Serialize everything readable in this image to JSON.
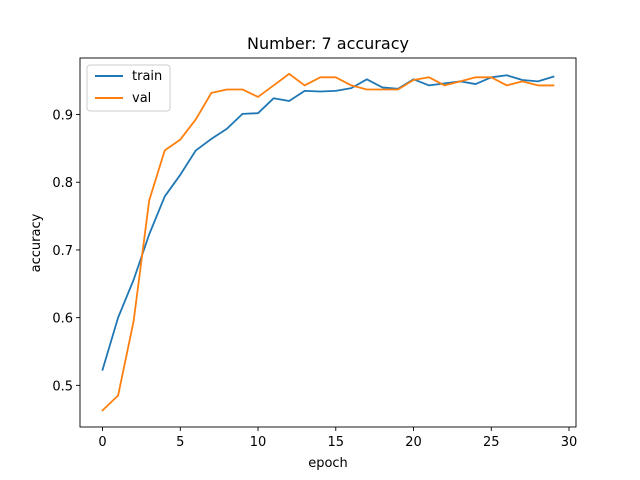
{
  "chart_data": {
    "type": "line",
    "title": "Number: 7 accuracy",
    "xlabel": "epoch",
    "ylabel": "accuracy",
    "xlim": [
      -1.45,
      30.45
    ],
    "ylim": [
      0.4385,
      0.9835
    ],
    "xticks": [
      0,
      5,
      10,
      15,
      20,
      25,
      30
    ],
    "yticks": [
      0.5,
      0.6,
      0.7,
      0.8,
      0.9
    ],
    "xtick_labels": [
      "0",
      "5",
      "10",
      "15",
      "20",
      "25",
      "30"
    ],
    "ytick_labels": [
      "0.5",
      "0.6",
      "0.7",
      "0.8",
      "0.9"
    ],
    "grid": false,
    "legend_position": "upper-left",
    "x": [
      0,
      1,
      2,
      3,
      4,
      5,
      6,
      7,
      8,
      9,
      10,
      11,
      12,
      13,
      14,
      15,
      16,
      17,
      18,
      19,
      20,
      21,
      22,
      23,
      24,
      25,
      26,
      27,
      28,
      29
    ],
    "series": [
      {
        "name": "train",
        "color": "#1f77b4",
        "values": [
          0.523,
          0.6,
          0.656,
          0.723,
          0.779,
          0.811,
          0.847,
          0.864,
          0.879,
          0.901,
          0.902,
          0.924,
          0.92,
          0.935,
          0.934,
          0.935,
          0.939,
          0.952,
          0.94,
          0.938,
          0.952,
          0.943,
          0.946,
          0.949,
          0.945,
          0.955,
          0.958,
          0.951,
          0.949,
          0.956
        ]
      },
      {
        "name": "val",
        "color": "#ff7f0e",
        "values": [
          0.463,
          0.485,
          0.595,
          0.773,
          0.847,
          0.863,
          0.893,
          0.932,
          0.937,
          0.937,
          0.926,
          0.943,
          0.96,
          0.943,
          0.955,
          0.955,
          0.943,
          0.937,
          0.937,
          0.937,
          0.951,
          0.955,
          0.943,
          0.949,
          0.955,
          0.955,
          0.943,
          0.949,
          0.943,
          0.943
        ]
      }
    ]
  }
}
